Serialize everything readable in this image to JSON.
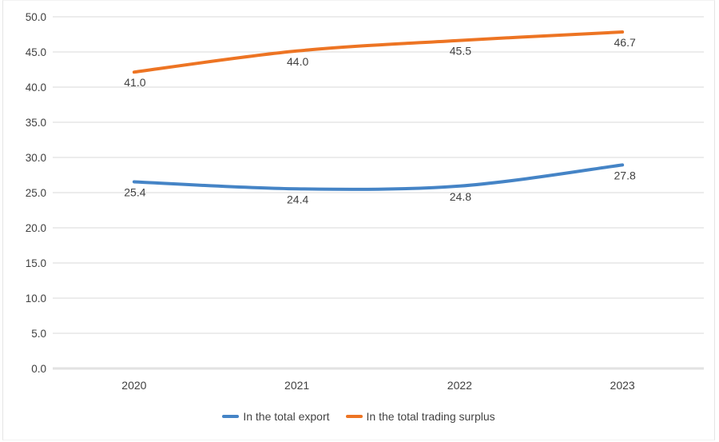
{
  "frame": {
    "background": "#ffffff",
    "border_color": "#e4e4e4"
  },
  "chart_data": {
    "type": "line",
    "title": "",
    "xlabel": "",
    "ylabel": "",
    "categories": [
      "2020",
      "2021",
      "2022",
      "2023"
    ],
    "series": [
      {
        "name": "In the total export",
        "color": "#4584C6",
        "values": [
          25.4,
          24.4,
          24.8,
          27.8
        ]
      },
      {
        "name": "In the total trading surplus",
        "color": "#ED7423",
        "values": [
          41.0,
          44.0,
          45.5,
          46.7
        ]
      }
    ],
    "ylim": [
      0,
      50
    ],
    "ytick_step": 5,
    "ytick_labels": [
      "0.0",
      "5.0",
      "10.0",
      "15.0",
      "20.0",
      "25.0",
      "30.0",
      "35.0",
      "40.0",
      "45.0",
      "50.0"
    ],
    "grid": true,
    "gridline_color": "#d9d9d9",
    "baseline_color": "#e2e2e2",
    "data_labels": true,
    "data_label_color": "#404040",
    "axis_label_color": "#404040",
    "legend_position": "bottom"
  }
}
